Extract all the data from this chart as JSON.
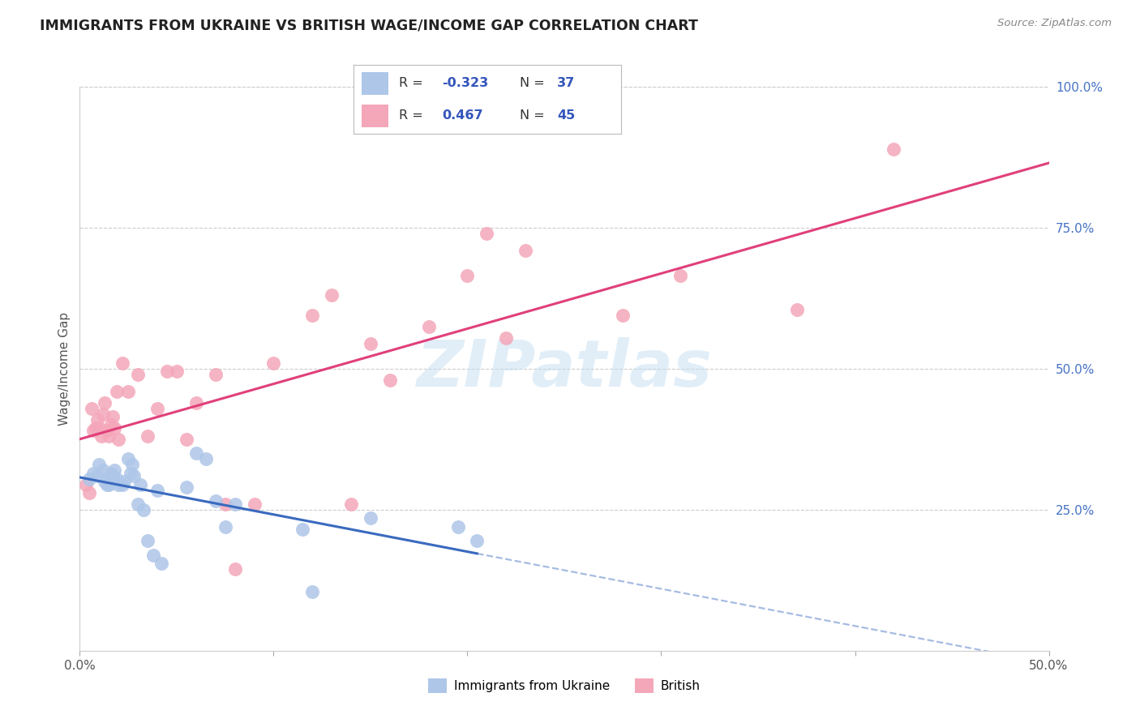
{
  "title": "IMMIGRANTS FROM UKRAINE VS BRITISH WAGE/INCOME GAP CORRELATION CHART",
  "source": "Source: ZipAtlas.com",
  "ylabel_label": "Wage/Income Gap",
  "x_min": 0.0,
  "x_max": 0.5,
  "y_min": 0.0,
  "y_max": 1.0,
  "x_ticks": [
    0.0,
    0.1,
    0.2,
    0.3,
    0.4,
    0.5
  ],
  "x_tick_labels_show": [
    "0.0%",
    "",
    "",
    "",
    "",
    "50.0%"
  ],
  "y_ticks_right": [
    0.25,
    0.5,
    0.75,
    1.0
  ],
  "y_tick_labels_right": [
    "25.0%",
    "50.0%",
    "75.0%",
    "100.0%"
  ],
  "ukraine_scatter_color": "#aec6e8",
  "british_scatter_color": "#f4a7b9",
  "ukraine_line_color": "#3a6abf",
  "british_line_color": "#e0407a",
  "ukraine_scatter": [
    [
      0.005,
      0.305
    ],
    [
      0.007,
      0.315
    ],
    [
      0.009,
      0.31
    ],
    [
      0.01,
      0.33
    ],
    [
      0.012,
      0.32
    ],
    [
      0.013,
      0.3
    ],
    [
      0.014,
      0.295
    ],
    [
      0.015,
      0.295
    ],
    [
      0.016,
      0.315
    ],
    [
      0.017,
      0.31
    ],
    [
      0.018,
      0.32
    ],
    [
      0.019,
      0.305
    ],
    [
      0.02,
      0.295
    ],
    [
      0.022,
      0.295
    ],
    [
      0.023,
      0.3
    ],
    [
      0.025,
      0.34
    ],
    [
      0.026,
      0.315
    ],
    [
      0.027,
      0.33
    ],
    [
      0.028,
      0.31
    ],
    [
      0.03,
      0.26
    ],
    [
      0.031,
      0.295
    ],
    [
      0.033,
      0.25
    ],
    [
      0.035,
      0.195
    ],
    [
      0.038,
      0.17
    ],
    [
      0.04,
      0.285
    ],
    [
      0.042,
      0.155
    ],
    [
      0.055,
      0.29
    ],
    [
      0.06,
      0.35
    ],
    [
      0.065,
      0.34
    ],
    [
      0.07,
      0.265
    ],
    [
      0.075,
      0.22
    ],
    [
      0.08,
      0.26
    ],
    [
      0.115,
      0.215
    ],
    [
      0.12,
      0.105
    ],
    [
      0.15,
      0.235
    ],
    [
      0.195,
      0.22
    ],
    [
      0.205,
      0.195
    ]
  ],
  "british_scatter": [
    [
      0.003,
      0.295
    ],
    [
      0.005,
      0.28
    ],
    [
      0.006,
      0.43
    ],
    [
      0.007,
      0.39
    ],
    [
      0.008,
      0.395
    ],
    [
      0.009,
      0.41
    ],
    [
      0.01,
      0.395
    ],
    [
      0.011,
      0.38
    ],
    [
      0.012,
      0.42
    ],
    [
      0.013,
      0.44
    ],
    [
      0.014,
      0.39
    ],
    [
      0.015,
      0.38
    ],
    [
      0.016,
      0.4
    ],
    [
      0.017,
      0.415
    ],
    [
      0.018,
      0.395
    ],
    [
      0.019,
      0.46
    ],
    [
      0.02,
      0.375
    ],
    [
      0.022,
      0.51
    ],
    [
      0.025,
      0.46
    ],
    [
      0.03,
      0.49
    ],
    [
      0.035,
      0.38
    ],
    [
      0.04,
      0.43
    ],
    [
      0.045,
      0.495
    ],
    [
      0.05,
      0.495
    ],
    [
      0.055,
      0.375
    ],
    [
      0.06,
      0.44
    ],
    [
      0.07,
      0.49
    ],
    [
      0.075,
      0.26
    ],
    [
      0.08,
      0.145
    ],
    [
      0.09,
      0.26
    ],
    [
      0.1,
      0.51
    ],
    [
      0.12,
      0.595
    ],
    [
      0.13,
      0.63
    ],
    [
      0.14,
      0.26
    ],
    [
      0.15,
      0.545
    ],
    [
      0.16,
      0.48
    ],
    [
      0.18,
      0.575
    ],
    [
      0.2,
      0.665
    ],
    [
      0.21,
      0.74
    ],
    [
      0.22,
      0.555
    ],
    [
      0.23,
      0.71
    ],
    [
      0.28,
      0.595
    ],
    [
      0.31,
      0.665
    ],
    [
      0.37,
      0.605
    ],
    [
      0.42,
      0.89
    ]
  ],
  "watermark_text": "ZIPatlas",
  "background_color": "#ffffff",
  "grid_color": "#cccccc",
  "title_color": "#222222",
  "source_color": "#888888",
  "tick_color": "#555555",
  "right_tick_color": "#4472c4",
  "legend_text_color": "#333333",
  "legend_value_color": "#3355bb",
  "fig_width": 14.06,
  "fig_height": 8.92,
  "dpi": 100
}
